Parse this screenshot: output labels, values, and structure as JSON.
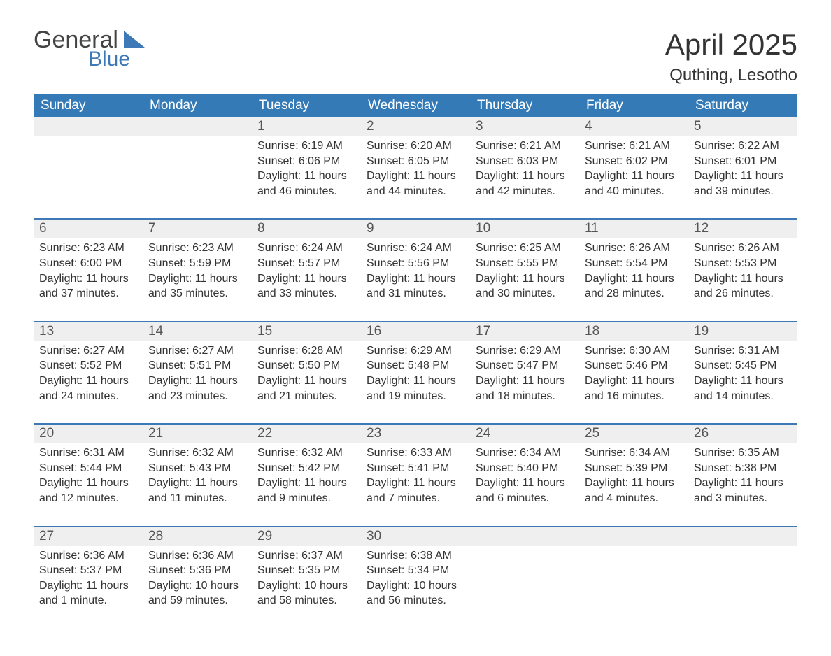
{
  "logo": {
    "word1": "General",
    "word2": "Blue",
    "tri_color": "#3c79b6"
  },
  "header": {
    "month_title": "April 2025",
    "location": "Quthing, Lesotho"
  },
  "colors": {
    "header_bg": "#337ab7",
    "header_text": "#ffffff",
    "row_border": "#3c79b6",
    "num_bg": "#efefef",
    "body_text": "#333333"
  },
  "day_names": [
    "Sunday",
    "Monday",
    "Tuesday",
    "Wednesday",
    "Thursday",
    "Friday",
    "Saturday"
  ],
  "weeks": [
    [
      null,
      null,
      {
        "n": "1",
        "sr": "6:19 AM",
        "ss": "6:06 PM",
        "dl": "11 hours and 46 minutes."
      },
      {
        "n": "2",
        "sr": "6:20 AM",
        "ss": "6:05 PM",
        "dl": "11 hours and 44 minutes."
      },
      {
        "n": "3",
        "sr": "6:21 AM",
        "ss": "6:03 PM",
        "dl": "11 hours and 42 minutes."
      },
      {
        "n": "4",
        "sr": "6:21 AM",
        "ss": "6:02 PM",
        "dl": "11 hours and 40 minutes."
      },
      {
        "n": "5",
        "sr": "6:22 AM",
        "ss": "6:01 PM",
        "dl": "11 hours and 39 minutes."
      }
    ],
    [
      {
        "n": "6",
        "sr": "6:23 AM",
        "ss": "6:00 PM",
        "dl": "11 hours and 37 minutes."
      },
      {
        "n": "7",
        "sr": "6:23 AM",
        "ss": "5:59 PM",
        "dl": "11 hours and 35 minutes."
      },
      {
        "n": "8",
        "sr": "6:24 AM",
        "ss": "5:57 PM",
        "dl": "11 hours and 33 minutes."
      },
      {
        "n": "9",
        "sr": "6:24 AM",
        "ss": "5:56 PM",
        "dl": "11 hours and 31 minutes."
      },
      {
        "n": "10",
        "sr": "6:25 AM",
        "ss": "5:55 PM",
        "dl": "11 hours and 30 minutes."
      },
      {
        "n": "11",
        "sr": "6:26 AM",
        "ss": "5:54 PM",
        "dl": "11 hours and 28 minutes."
      },
      {
        "n": "12",
        "sr": "6:26 AM",
        "ss": "5:53 PM",
        "dl": "11 hours and 26 minutes."
      }
    ],
    [
      {
        "n": "13",
        "sr": "6:27 AM",
        "ss": "5:52 PM",
        "dl": "11 hours and 24 minutes."
      },
      {
        "n": "14",
        "sr": "6:27 AM",
        "ss": "5:51 PM",
        "dl": "11 hours and 23 minutes."
      },
      {
        "n": "15",
        "sr": "6:28 AM",
        "ss": "5:50 PM",
        "dl": "11 hours and 21 minutes."
      },
      {
        "n": "16",
        "sr": "6:29 AM",
        "ss": "5:48 PM",
        "dl": "11 hours and 19 minutes."
      },
      {
        "n": "17",
        "sr": "6:29 AM",
        "ss": "5:47 PM",
        "dl": "11 hours and 18 minutes."
      },
      {
        "n": "18",
        "sr": "6:30 AM",
        "ss": "5:46 PM",
        "dl": "11 hours and 16 minutes."
      },
      {
        "n": "19",
        "sr": "6:31 AM",
        "ss": "5:45 PM",
        "dl": "11 hours and 14 minutes."
      }
    ],
    [
      {
        "n": "20",
        "sr": "6:31 AM",
        "ss": "5:44 PM",
        "dl": "11 hours and 12 minutes."
      },
      {
        "n": "21",
        "sr": "6:32 AM",
        "ss": "5:43 PM",
        "dl": "11 hours and 11 minutes."
      },
      {
        "n": "22",
        "sr": "6:32 AM",
        "ss": "5:42 PM",
        "dl": "11 hours and 9 minutes."
      },
      {
        "n": "23",
        "sr": "6:33 AM",
        "ss": "5:41 PM",
        "dl": "11 hours and 7 minutes."
      },
      {
        "n": "24",
        "sr": "6:34 AM",
        "ss": "5:40 PM",
        "dl": "11 hours and 6 minutes."
      },
      {
        "n": "25",
        "sr": "6:34 AM",
        "ss": "5:39 PM",
        "dl": "11 hours and 4 minutes."
      },
      {
        "n": "26",
        "sr": "6:35 AM",
        "ss": "5:38 PM",
        "dl": "11 hours and 3 minutes."
      }
    ],
    [
      {
        "n": "27",
        "sr": "6:36 AM",
        "ss": "5:37 PM",
        "dl": "11 hours and 1 minute."
      },
      {
        "n": "28",
        "sr": "6:36 AM",
        "ss": "5:36 PM",
        "dl": "10 hours and 59 minutes."
      },
      {
        "n": "29",
        "sr": "6:37 AM",
        "ss": "5:35 PM",
        "dl": "10 hours and 58 minutes."
      },
      {
        "n": "30",
        "sr": "6:38 AM",
        "ss": "5:34 PM",
        "dl": "10 hours and 56 minutes."
      },
      null,
      null,
      null
    ]
  ],
  "labels": {
    "sunrise": "Sunrise: ",
    "sunset": "Sunset: ",
    "daylight": "Daylight: "
  }
}
